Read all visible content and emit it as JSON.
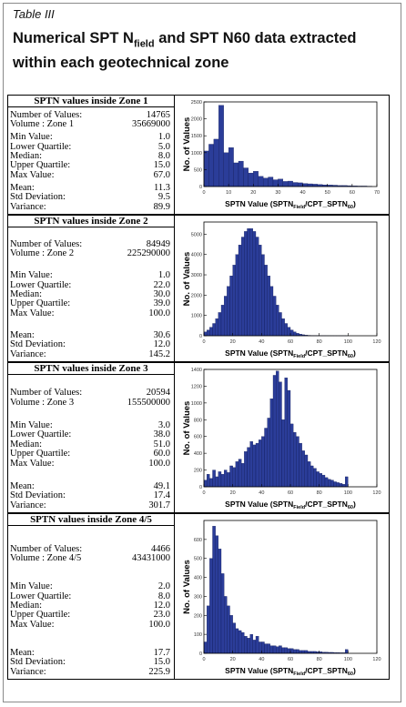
{
  "header": {
    "label": "Table III",
    "title": [
      "Numerical SPT N",
      "field",
      "and SPT N60 data extracted within each geotechnical zone"
    ]
  },
  "zones": [
    {
      "heading": "SPTN values inside Zone 1",
      "rows": [
        [
          "Number of Values:",
          "14765"
        ],
        [
          "Volume : Zone 1",
          "35669000"
        ],
        [
          "Min Value:",
          "1.0"
        ],
        [
          "Lower Quartile:",
          "5.0"
        ],
        [
          "Median:",
          "8.0"
        ],
        [
          "Upper Quartile:",
          "15.0"
        ],
        [
          "Max Value:",
          "67.0"
        ],
        [
          "Mean:",
          "11.3"
        ],
        [
          "Std Deviation:",
          "9.5"
        ],
        [
          "Variance:",
          "89.9"
        ]
      ],
      "histogram": {
        "type": "histogram",
        "ylabel": "No. of Values",
        "xlabel": [
          "SPTN Value (SPTN",
          "Field",
          "/CPT_SPTN",
          "60",
          ")"
        ],
        "color": "#2b3d99",
        "bins": [
          0,
          2,
          4,
          6,
          8,
          10,
          12,
          14,
          16,
          18,
          20,
          22,
          24,
          26,
          28,
          30,
          32,
          34,
          36,
          38,
          40,
          42,
          44,
          46,
          48,
          50,
          52,
          54,
          56,
          58,
          60,
          62,
          64,
          66,
          68
        ],
        "counts": [
          1050,
          1250,
          1400,
          2400,
          1000,
          1150,
          700,
          750,
          550,
          400,
          450,
          300,
          250,
          280,
          200,
          220,
          150,
          160,
          120,
          110,
          90,
          80,
          70,
          60,
          50,
          45,
          40,
          30,
          30,
          25,
          20,
          15,
          15,
          10
        ],
        "xlim": [
          0,
          70
        ],
        "xticks": [
          0,
          10,
          20,
          30,
          40,
          50,
          60,
          70
        ],
        "ylim": [
          0,
          2500
        ],
        "yticks": [
          0,
          500,
          1000,
          1500,
          2000,
          2500
        ]
      }
    },
    {
      "heading": "SPTN values inside Zone 2",
      "rows": [
        [
          "Number of Values:",
          "84949"
        ],
        [
          "Volume : Zone 2",
          "225290000"
        ],
        [
          "Min Value:",
          "1.0"
        ],
        [
          "Lower Quartile:",
          "22.0"
        ],
        [
          "Median:",
          "30.0"
        ],
        [
          "Upper Quartile:",
          "39.0"
        ],
        [
          "Max Value:",
          "100.0"
        ],
        [
          "Mean:",
          "30.6"
        ],
        [
          "Std Deviation:",
          "12.0"
        ],
        [
          "Variance:",
          "145.2"
        ]
      ],
      "histogram": {
        "type": "histogram",
        "ylabel": "No. of Values",
        "xlabel": [
          "SPTN Value (SPTN",
          "Field",
          "/CPT_SPTN",
          "60",
          ")"
        ],
        "color": "#2b3d99",
        "bins": [
          0,
          2,
          4,
          6,
          8,
          10,
          12,
          14,
          16,
          18,
          20,
          22,
          24,
          26,
          28,
          30,
          32,
          34,
          36,
          38,
          40,
          42,
          44,
          46,
          48,
          50,
          52,
          54,
          56,
          58,
          60,
          62,
          64,
          66,
          68,
          70,
          72,
          74,
          76,
          78,
          80,
          82,
          84,
          86,
          88,
          90,
          92,
          94,
          96,
          98,
          100
        ],
        "counts": [
          190,
          285,
          420,
          605,
          840,
          1145,
          1510,
          1950,
          2430,
          2950,
          3480,
          4000,
          4470,
          4860,
          5135,
          5280,
          5280,
          5135,
          4860,
          4470,
          4000,
          3480,
          2950,
          2430,
          1950,
          1510,
          1145,
          840,
          605,
          420,
          285,
          190,
          120,
          80,
          50,
          30,
          20,
          15,
          10,
          8,
          6,
          5,
          4,
          3,
          3,
          2,
          2,
          2,
          2,
          2
        ],
        "xlim": [
          0,
          120
        ],
        "xticks": [
          0,
          20,
          40,
          60,
          80,
          100,
          120
        ],
        "ylim": [
          0,
          5600
        ],
        "yticks": [
          0,
          1000,
          2000,
          3000,
          4000,
          5000
        ]
      }
    },
    {
      "heading": "SPTN values inside Zone 3",
      "rows": [
        [
          "Number of Values:",
          "20594"
        ],
        [
          "Volume : Zone 3",
          "155500000"
        ],
        [
          "Min Value:",
          "3.0"
        ],
        [
          "Lower Quartile:",
          "38.0"
        ],
        [
          "Median:",
          "51.0"
        ],
        [
          "Upper Quartile:",
          "60.0"
        ],
        [
          "Max Value:",
          "100.0"
        ],
        [
          "Mean:",
          "49.1"
        ],
        [
          "Std Deviation:",
          "17.4"
        ],
        [
          "Variance:",
          "301.7"
        ]
      ],
      "histogram": {
        "type": "histogram",
        "ylabel": "No. of Values",
        "xlabel": [
          "SPTN Value (SPTN",
          "Field",
          "/CPT_SPTN",
          "60",
          ")"
        ],
        "color": "#2b3d99",
        "bins": [
          0,
          2,
          4,
          6,
          8,
          10,
          12,
          14,
          16,
          18,
          20,
          22,
          24,
          26,
          28,
          30,
          32,
          34,
          36,
          38,
          40,
          42,
          44,
          46,
          48,
          50,
          52,
          54,
          56,
          58,
          60,
          62,
          64,
          66,
          68,
          70,
          72,
          74,
          76,
          78,
          80,
          82,
          84,
          86,
          88,
          90,
          92,
          94,
          96,
          98,
          100
        ],
        "counts": [
          80,
          150,
          100,
          200,
          120,
          180,
          150,
          200,
          170,
          250,
          230,
          300,
          330,
          280,
          420,
          470,
          540,
          500,
          520,
          560,
          600,
          700,
          820,
          1050,
          1330,
          1380,
          1250,
          800,
          1300,
          1150,
          750,
          650,
          600,
          520,
          430,
          380,
          300,
          250,
          220,
          180,
          160,
          140,
          110,
          90,
          80,
          60,
          50,
          40,
          30,
          120
        ],
        "xlim": [
          0,
          120
        ],
        "xticks": [
          0,
          20,
          40,
          60,
          80,
          100,
          120
        ],
        "ylim": [
          0,
          1400
        ],
        "yticks": [
          0,
          200,
          400,
          600,
          800,
          1000,
          1200,
          1400
        ]
      }
    },
    {
      "heading": "SPTN values inside Zone 4/5",
      "rows": [
        [
          "Number of Values:",
          "4466"
        ],
        [
          "Volume : Zone 4/5",
          "43431000"
        ],
        [
          "Min Value:",
          "2.0"
        ],
        [
          "Lower Quartile:",
          "8.0"
        ],
        [
          "Median:",
          "12.0"
        ],
        [
          "Upper Quartile:",
          "23.0"
        ],
        [
          "Max Value:",
          "100.0"
        ],
        [
          "Mean:",
          "17.7"
        ],
        [
          "Std Deviation:",
          "15.0"
        ],
        [
          "Variance:",
          "225.9"
        ]
      ],
      "histogram": {
        "type": "histogram",
        "ylabel": "No. of Values",
        "xlabel": [
          "SPTN Value (SPTN",
          "Field",
          "/CPT_SPTN",
          "60",
          ")"
        ],
        "color": "#2b3d99",
        "bins": [
          0,
          2,
          4,
          6,
          8,
          10,
          12,
          14,
          16,
          18,
          20,
          22,
          24,
          26,
          28,
          30,
          32,
          34,
          36,
          38,
          40,
          42,
          44,
          46,
          48,
          50,
          52,
          54,
          56,
          58,
          60,
          62,
          64,
          66,
          68,
          70,
          72,
          74,
          76,
          78,
          80,
          82,
          84,
          86,
          88,
          90,
          92,
          94,
          96,
          98,
          100
        ],
        "counts": [
          60,
          250,
          500,
          670,
          620,
          550,
          420,
          300,
          250,
          200,
          160,
          130,
          120,
          110,
          90,
          80,
          100,
          70,
          90,
          60,
          60,
          50,
          50,
          40,
          40,
          35,
          40,
          30,
          30,
          25,
          25,
          20,
          20,
          15,
          15,
          15,
          10,
          10,
          10,
          8,
          8,
          6,
          6,
          5,
          5,
          4,
          4,
          3,
          3,
          20
        ],
        "xlim": [
          0,
          120
        ],
        "xticks": [
          0,
          20,
          40,
          60,
          80,
          100,
          120
        ],
        "ylim": [
          0,
          700
        ],
        "yticks": [
          0,
          100,
          200,
          300,
          400,
          500,
          600
        ]
      }
    }
  ]
}
